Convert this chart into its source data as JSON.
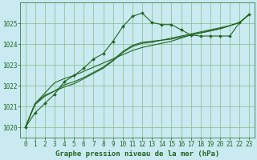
{
  "background_color": "#c8eaf0",
  "grid_color": "#88bb88",
  "line_color": "#226622",
  "marker_color": "#226622",
  "title": "Graphe pression niveau de la mer (hPa)",
  "title_fontsize": 6.5,
  "tick_fontsize": 5.5,
  "xlim": [
    -0.5,
    23.5
  ],
  "ylim": [
    1019.5,
    1026.0
  ],
  "yticks": [
    1020,
    1021,
    1022,
    1023,
    1024,
    1025
  ],
  "xticks": [
    0,
    1,
    2,
    3,
    4,
    5,
    6,
    7,
    8,
    9,
    10,
    11,
    12,
    13,
    14,
    15,
    16,
    17,
    18,
    19,
    20,
    21,
    22,
    23
  ],
  "series": [
    [
      1020.0,
      1020.7,
      1021.15,
      1021.6,
      1022.2,
      1022.5,
      1022.85,
      1023.3,
      1023.55,
      1024.15,
      1024.85,
      1025.35,
      1025.5,
      1025.05,
      1024.95,
      1024.95,
      1024.7,
      1024.45,
      1024.4,
      1024.4,
      1024.4,
      1024.4,
      1025.05,
      1025.45
    ],
    [
      1020.0,
      1021.15,
      1021.55,
      1021.75,
      1022.05,
      1022.2,
      1022.4,
      1022.65,
      1022.9,
      1023.25,
      1023.65,
      1023.95,
      1024.1,
      1024.15,
      1024.2,
      1024.3,
      1024.4,
      1024.5,
      1024.6,
      1024.7,
      1024.8,
      1024.9,
      1025.05,
      1025.45
    ],
    [
      1020.0,
      1021.15,
      1021.65,
      1022.15,
      1022.35,
      1022.5,
      1022.7,
      1022.9,
      1023.1,
      1023.3,
      1023.5,
      1023.7,
      1023.85,
      1023.95,
      1024.05,
      1024.15,
      1024.3,
      1024.45,
      1024.55,
      1024.65,
      1024.75,
      1024.9,
      1025.05,
      1025.45
    ],
    [
      1020.0,
      1021.1,
      1021.5,
      1021.75,
      1021.95,
      1022.1,
      1022.35,
      1022.6,
      1022.85,
      1023.2,
      1023.6,
      1023.9,
      1024.05,
      1024.1,
      1024.2,
      1024.25,
      1024.35,
      1024.45,
      1024.55,
      1024.65,
      1024.75,
      1024.9,
      1025.05,
      1025.45
    ]
  ],
  "series_with_markers": [
    0
  ],
  "marker": "D",
  "marker_size": 2.0,
  "linewidth": 0.8,
  "figwidth": 3.2,
  "figheight": 2.0,
  "dpi": 100
}
